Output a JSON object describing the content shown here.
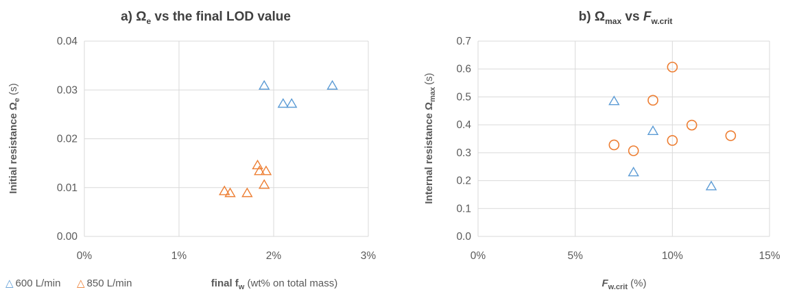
{
  "colors": {
    "series_600": "#5b9bd5",
    "series_850": "#ed7d31",
    "grid": "#d9d9d9",
    "text": "#595959"
  },
  "legend": {
    "items": [
      {
        "symbol": "△",
        "label": "600 L/min",
        "color": "#5b9bd5"
      },
      {
        "symbol": "△",
        "label": "850 L/min",
        "color": "#ed7d31"
      }
    ]
  },
  "chart_data": [
    {
      "type": "scatter",
      "title_prefix": "a) Ω",
      "title_sub": "e",
      "title_suffix": " vs the final LOD value",
      "ylabel_main": "Initial resistance  Ω",
      "ylabel_sub": "e",
      "ylabel_unit": "(s)",
      "xlabel_bold": "final f",
      "xlabel_sub": "w",
      "xlabel_rest": " (wt% on total mass)",
      "xlim": [
        0,
        3
      ],
      "ylim": [
        0,
        0.04
      ],
      "xticks": [
        "0%",
        "1%",
        "2%",
        "3%"
      ],
      "yticks": [
        "0.00",
        "0.01",
        "0.02",
        "0.03",
        "0.04"
      ],
      "grid": true,
      "marker": "triangle",
      "series": [
        {
          "name": "600 L/min",
          "color": "#5b9bd5",
          "points": [
            [
              1.9,
              0.031
            ],
            [
              2.1,
              0.0273
            ],
            [
              2.19,
              0.0273
            ],
            [
              2.62,
              0.031
            ]
          ]
        },
        {
          "name": "850 L/min",
          "color": "#ed7d31",
          "points": [
            [
              1.48,
              0.0094
            ],
            [
              1.54,
              0.009
            ],
            [
              1.72,
              0.009
            ],
            [
              1.83,
              0.0147
            ],
            [
              1.85,
              0.0135
            ],
            [
              1.92,
              0.0135
            ],
            [
              1.9,
              0.0107
            ]
          ]
        }
      ]
    },
    {
      "type": "scatter",
      "title_prefix": "b) Ω",
      "title_sub": "max",
      "title_mid": " vs ",
      "title_italic": "F",
      "title_sub2": "w.crit",
      "ylabel_main": "Internal resistance Ω",
      "ylabel_sub": "max",
      "ylabel_unit": "(s)",
      "xlabel_italic": "F",
      "xlabel_sub": "w.crit",
      "xlabel_rest": " (%)",
      "xlim": [
        0,
        15
      ],
      "ylim": [
        0,
        0.7
      ],
      "xticks": [
        "0%",
        "5%",
        "10%",
        "15%"
      ],
      "yticks": [
        "0.0",
        "0.1",
        "0.2",
        "0.3",
        "0.4",
        "0.5",
        "0.6",
        "0.7"
      ],
      "grid": true,
      "series": [
        {
          "name": "600 L/min",
          "color": "#5b9bd5",
          "marker": "triangle",
          "points": [
            [
              7,
              0.487
            ],
            [
              8,
              0.232
            ],
            [
              9,
              0.38
            ],
            [
              12,
              0.182
            ]
          ]
        },
        {
          "name": "850 L/min",
          "color": "#ed7d31",
          "marker": "circle",
          "points": [
            [
              7,
              0.328
            ],
            [
              8,
              0.307
            ],
            [
              9,
              0.488
            ],
            [
              10,
              0.607
            ],
            [
              10,
              0.344
            ],
            [
              11,
              0.399
            ],
            [
              13,
              0.361
            ]
          ]
        }
      ]
    }
  ]
}
